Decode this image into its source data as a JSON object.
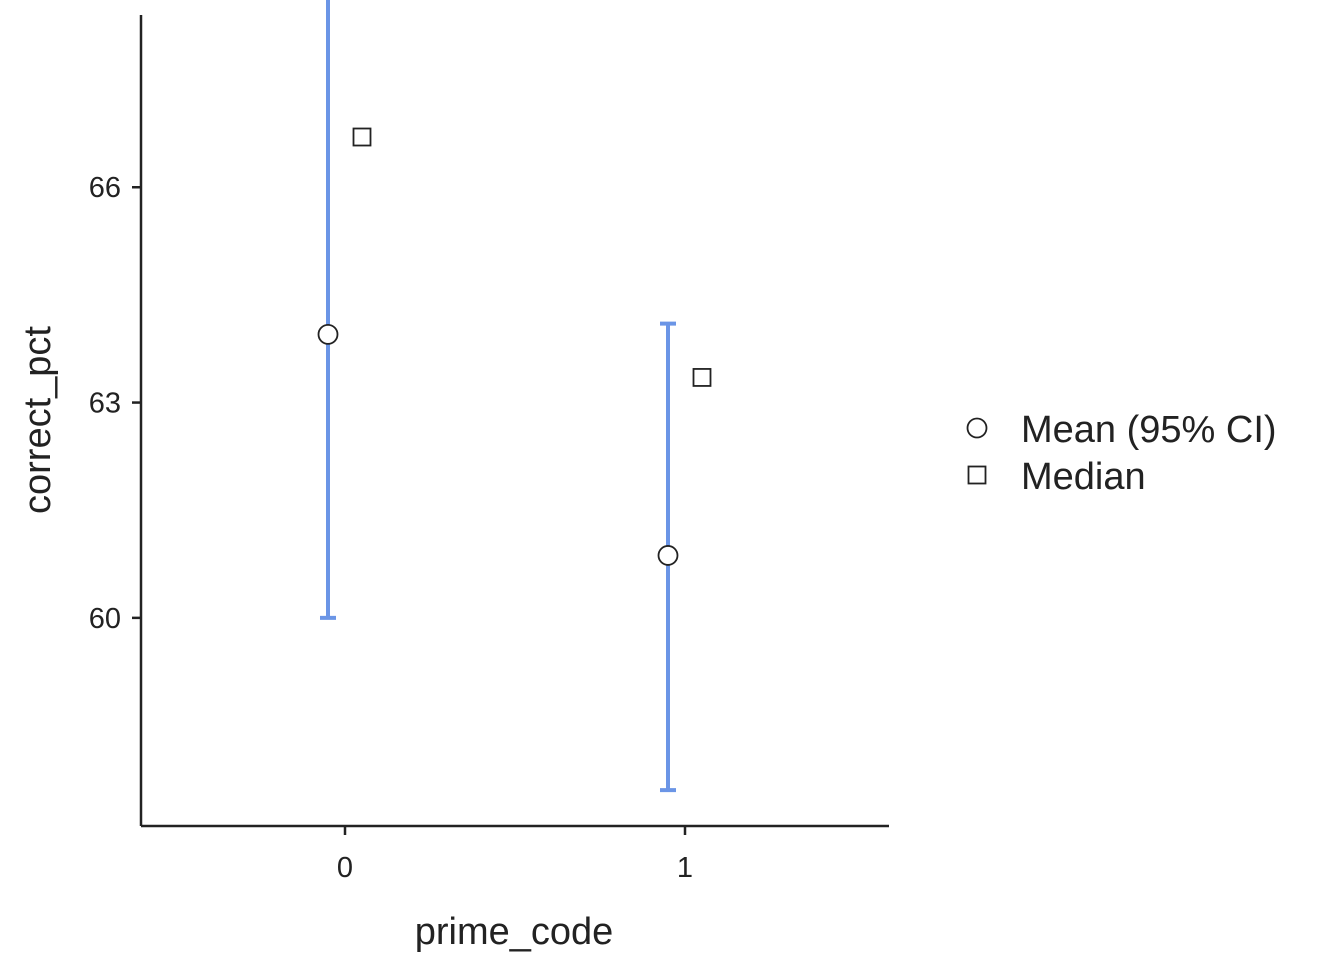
{
  "chart_data": {
    "type": "scatter",
    "xlabel": "prime_code",
    "ylabel": "correct_pct",
    "categories": [
      "0",
      "1"
    ],
    "x_range": [
      -0.6,
      1.6
    ],
    "y_range": [
      57.1,
      68.4
    ],
    "y_ticks": [
      60,
      63,
      66
    ],
    "y_tick_labels": [
      "60",
      "63",
      "66"
    ],
    "grid": false,
    "legend_position": "right",
    "series": [
      {
        "name": "Mean (95% CI)",
        "marker": "circle",
        "points": [
          {
            "x": 0,
            "y": 63.95,
            "ci_low": 60.0,
            "ci_high": 68.9
          },
          {
            "x": 1,
            "y": 60.87,
            "ci_low": 57.6,
            "ci_high": 64.1
          }
        ]
      },
      {
        "name": "Median",
        "marker": "square",
        "points": [
          {
            "x": 0,
            "y": 66.7
          },
          {
            "x": 1,
            "y": 63.35
          }
        ]
      }
    ],
    "colors": {
      "error_bar": "#6b95e6",
      "axis": "#222222",
      "marker_stroke": "#222222",
      "marker_fill": "#ffffff"
    }
  }
}
